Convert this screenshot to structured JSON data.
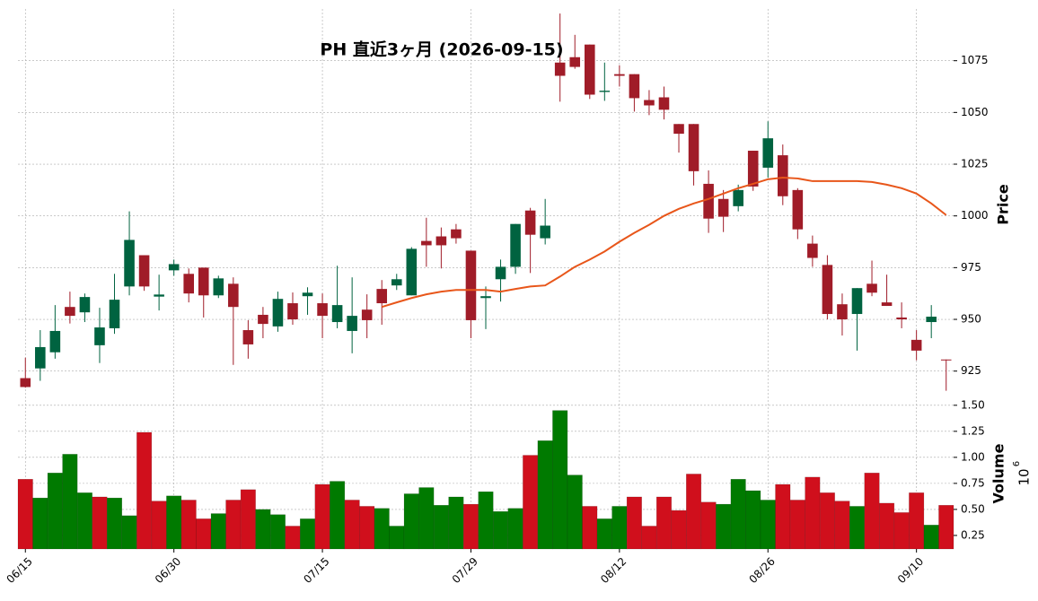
{
  "chart_data": {
    "type": "candlestick",
    "title": "PH  直近3ヶ月 (2026-09-15)",
    "ylabel": "Price",
    "categories": [
      "06/15",
      null,
      null,
      null,
      null,
      null,
      null,
      null,
      null,
      null,
      "06/30",
      null,
      null,
      null,
      null,
      null,
      null,
      null,
      null,
      null,
      "07/15",
      null,
      null,
      null,
      null,
      null,
      null,
      null,
      null,
      null,
      "07/29",
      null,
      null,
      null,
      null,
      null,
      null,
      null,
      null,
      null,
      "08/12",
      null,
      null,
      null,
      null,
      null,
      null,
      null,
      null,
      null,
      "08/26",
      null,
      null,
      null,
      null,
      null,
      null,
      null,
      null,
      null,
      "09/10",
      null,
      null
    ],
    "open": [
      921.6,
      926.3,
      934.1,
      956,
      953.4,
      937.5,
      945.7,
      965.9,
      981,
      961,
      973.7,
      972,
      975,
      961.6,
      967.2,
      944.8,
      952.2,
      946.6,
      957.8,
      961.2,
      957.8,
      948.7,
      944.4,
      954.7,
      964.7,
      966.4,
      961.6,
      987.9,
      990.1,
      993.5,
      983.2,
      960.3,
      969.4,
      975.4,
      1002.6,
      989.2,
      1074.1,
      1076.7,
      1082.8,
      1059.9,
      1068.5,
      1068.5,
      1056,
      1057.3,
      1044.4,
      1044.4,
      1015.5,
      1008.2,
      1004.7,
      1031.5,
      1023.3,
      1029.3,
      1012.5,
      986.6,
      976.3,
      957.3,
      952.6,
      967.2,
      958.2,
      950.9,
      940.1,
      948.7,
      930.6
    ],
    "high": [
      931.5,
      944.8,
      956.9,
      963.4,
      962.5,
      955.6,
      972,
      1002.2,
      981,
      971.6,
      978.9,
      974.6,
      975,
      971.1,
      970.3,
      949.6,
      956,
      963.4,
      963,
      965.5,
      962.5,
      975.9,
      970.3,
      962.1,
      969,
      972,
      984.9,
      999.1,
      994.4,
      996.1,
      983.2,
      965.9,
      978.9,
      996.1,
      1003.9,
      1008.2,
      1097.8,
      1087.5,
      1082.8,
      1074.1,
      1072.8,
      1068.5,
      1060.8,
      1062.5,
      1044.4,
      1044.4,
      1022,
      1012.5,
      1015.1,
      1031.5,
      1045.7,
      1034.5,
      1013.4,
      990.5,
      981,
      962.5,
      965.1,
      978.4,
      971.6,
      958.2,
      944.8,
      956.9,
      930.6
    ],
    "low": [
      917,
      920.3,
      931,
      948,
      948.7,
      928.9,
      943,
      961.6,
      963.8,
      954.3,
      971.1,
      958.2,
      950.9,
      960.3,
      928,
      931,
      940.9,
      944,
      947.4,
      952.2,
      940.9,
      945.7,
      933.6,
      940.9,
      947.4,
      964.2,
      961.6,
      975.4,
      974.6,
      986.6,
      940.9,
      945.3,
      958.6,
      972,
      972.4,
      986.2,
      1055.2,
      1071.1,
      1056.5,
      1055.6,
      1062.5,
      1050.4,
      1048.7,
      1046.6,
      1030.6,
      1014.7,
      991.8,
      992.2,
      1002.2,
      1012.1,
      1018.5,
      1005.2,
      988.8,
      975.4,
      950,
      942.2,
      934.9,
      961.2,
      956.5,
      945.7,
      930.2,
      940.9,
      915.5
    ],
    "close": [
      917.3,
      936.6,
      944.4,
      951.7,
      960.8,
      946.1,
      959.5,
      988.4,
      965.9,
      962,
      976.7,
      962.5,
      961.6,
      969.8,
      956,
      937.9,
      947.8,
      959.9,
      950,
      962.9,
      951.7,
      956.9,
      951.7,
      949.6,
      957.8,
      969.4,
      984.1,
      985.8,
      985.8,
      989.2,
      949.6,
      961.2,
      975.4,
      996.1,
      990.9,
      995.3,
      1067.7,
      1072,
      1058.6,
      1060.5,
      1067.7,
      1056.9,
      1053.4,
      1051.3,
      1039.7,
      1021.6,
      998.7,
      999.6,
      1012.5,
      1014.2,
      1037.5,
      1009.5,
      993.5,
      979.7,
      952.6,
      950,
      965.1,
      962.9,
      956.5,
      950,
      934.9,
      951.3,
      930.2
    ],
    "up_color": "#006340",
    "down_color": "#a01c28",
    "ma": {
      "color": "#e8561a",
      "values": [
        null,
        null,
        null,
        null,
        null,
        null,
        null,
        null,
        null,
        null,
        null,
        null,
        null,
        null,
        null,
        null,
        null,
        null,
        null,
        null,
        null,
        null,
        null,
        null,
        956,
        958.2,
        960.3,
        962.1,
        963.4,
        964.2,
        964.2,
        964.2,
        963.4,
        964.7,
        965.9,
        966.4,
        970.7,
        975.4,
        978.9,
        982.8,
        987.5,
        991.8,
        995.7,
        1000,
        1003.4,
        1006,
        1008.2,
        1010.8,
        1013.4,
        1015.5,
        1017.7,
        1018.5,
        1018.1,
        1016.8,
        1016.8,
        1016.8,
        1016.8,
        1016.4,
        1015.1,
        1013.4,
        1010.8,
        1006,
        1000.4
      ]
    },
    "ylim": [
      911,
      1100
    ],
    "yticks": [
      925,
      950,
      975,
      1000,
      1025,
      1050,
      1075
    ],
    "grid": true,
    "volume": {
      "ylabel": "Volume",
      "scale_base": "10",
      "scale_exponent": "6",
      "up_color": "#007a00",
      "down_color": "#d00f1c",
      "values": [
        0.79,
        0.61,
        0.85,
        1.03,
        0.66,
        0.62,
        0.61,
        0.44,
        1.24,
        0.58,
        0.63,
        0.59,
        0.41,
        0.46,
        0.59,
        0.69,
        0.5,
        0.45,
        0.34,
        0.41,
        0.74,
        0.77,
        0.59,
        0.53,
        0.51,
        0.34,
        0.65,
        0.71,
        0.54,
        0.62,
        0.55,
        0.67,
        0.48,
        0.51,
        1.02,
        1.16,
        1.45,
        0.83,
        0.53,
        0.41,
        0.53,
        0.62,
        0.34,
        0.62,
        0.49,
        0.84,
        0.57,
        0.55,
        0.79,
        0.68,
        0.59,
        0.74,
        0.59,
        0.81,
        0.66,
        0.58,
        0.53,
        0.85,
        0.56,
        0.47,
        0.66,
        0.35,
        0.54
      ],
      "ylim": [
        0.12,
        1.55
      ],
      "yticks": [
        {
          "value": 0.25,
          "label": "0.25"
        },
        {
          "value": 0.5,
          "label": "0.50"
        },
        {
          "value": 0.75,
          "label": "0.75"
        },
        {
          "value": 1,
          "label": "1.00"
        },
        {
          "value": 1.25,
          "label": "1.25"
        },
        {
          "value": 1.5,
          "label": "1.50"
        }
      ]
    }
  }
}
